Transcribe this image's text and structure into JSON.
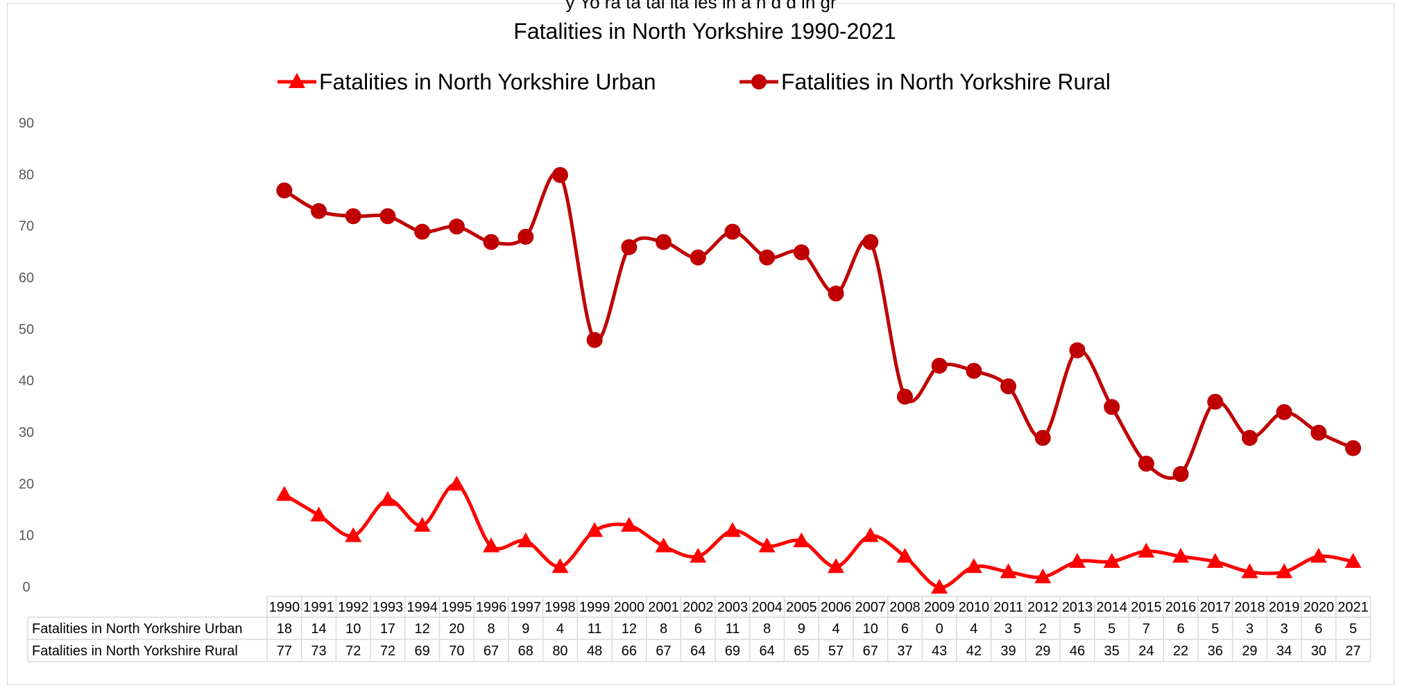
{
  "top_cropped_text": "y Yo      ra    ta        tal ita ies in        a  n     d  d in gr",
  "chart_data": {
    "type": "line",
    "title": "Fatalities in North Yorkshire 1990-2021",
    "xlabel": "",
    "ylabel": "",
    "ylim": [
      0,
      90
    ],
    "yticks": [
      0,
      10,
      20,
      30,
      40,
      50,
      60,
      70,
      80,
      90
    ],
    "grid": false,
    "legend_position": "top",
    "categories": [
      "1990",
      "1991",
      "1992",
      "1993",
      "1994",
      "1995",
      "1996",
      "1997",
      "1998",
      "1999",
      "2000",
      "2001",
      "2002",
      "2003",
      "2004",
      "2005",
      "2006",
      "2007",
      "2008",
      "2009",
      "2010",
      "2011",
      "2012",
      "2013",
      "2014",
      "2015",
      "2016",
      "2017",
      "2018",
      "2019",
      "2020",
      "2021"
    ],
    "series": [
      {
        "name": "Fatalities in North Yorkshire Urban",
        "marker": "triangle",
        "color": "#ff0000",
        "values": [
          18,
          14,
          10,
          17,
          12,
          20,
          8,
          9,
          4,
          11,
          12,
          8,
          6,
          11,
          8,
          9,
          4,
          10,
          6,
          0,
          4,
          3,
          2,
          5,
          5,
          7,
          6,
          5,
          3,
          3,
          6,
          5
        ]
      },
      {
        "name": "Fatalities in North Yorkshire Rural",
        "marker": "circle",
        "color": "#c00000",
        "values": [
          77,
          73,
          72,
          72,
          69,
          70,
          67,
          68,
          80,
          48,
          66,
          67,
          64,
          69,
          64,
          65,
          57,
          67,
          37,
          43,
          42,
          39,
          29,
          46,
          35,
          24,
          22,
          36,
          29,
          34,
          30,
          27
        ]
      }
    ],
    "plotted_series": [
      {
        "name": "Fatalities in North Yorkshire Urban",
        "values": [
          18,
          14,
          10,
          17,
          12,
          20,
          8,
          9,
          4,
          11,
          12,
          8,
          6,
          11,
          8,
          9,
          4,
          10,
          6,
          0,
          4,
          3,
          2,
          5,
          5,
          7,
          6,
          5,
          3,
          3,
          6,
          5
        ]
      },
      {
        "name": "Fatalities in North Yorkshire Rural",
        "values": [
          77,
          73,
          72,
          72,
          69,
          70,
          67,
          68,
          80,
          48,
          66,
          67,
          64,
          69,
          64,
          65,
          57,
          67,
          37,
          43,
          42,
          39,
          29,
          46,
          35,
          24,
          22,
          36,
          29,
          34,
          30,
          27
        ]
      }
    ]
  }
}
